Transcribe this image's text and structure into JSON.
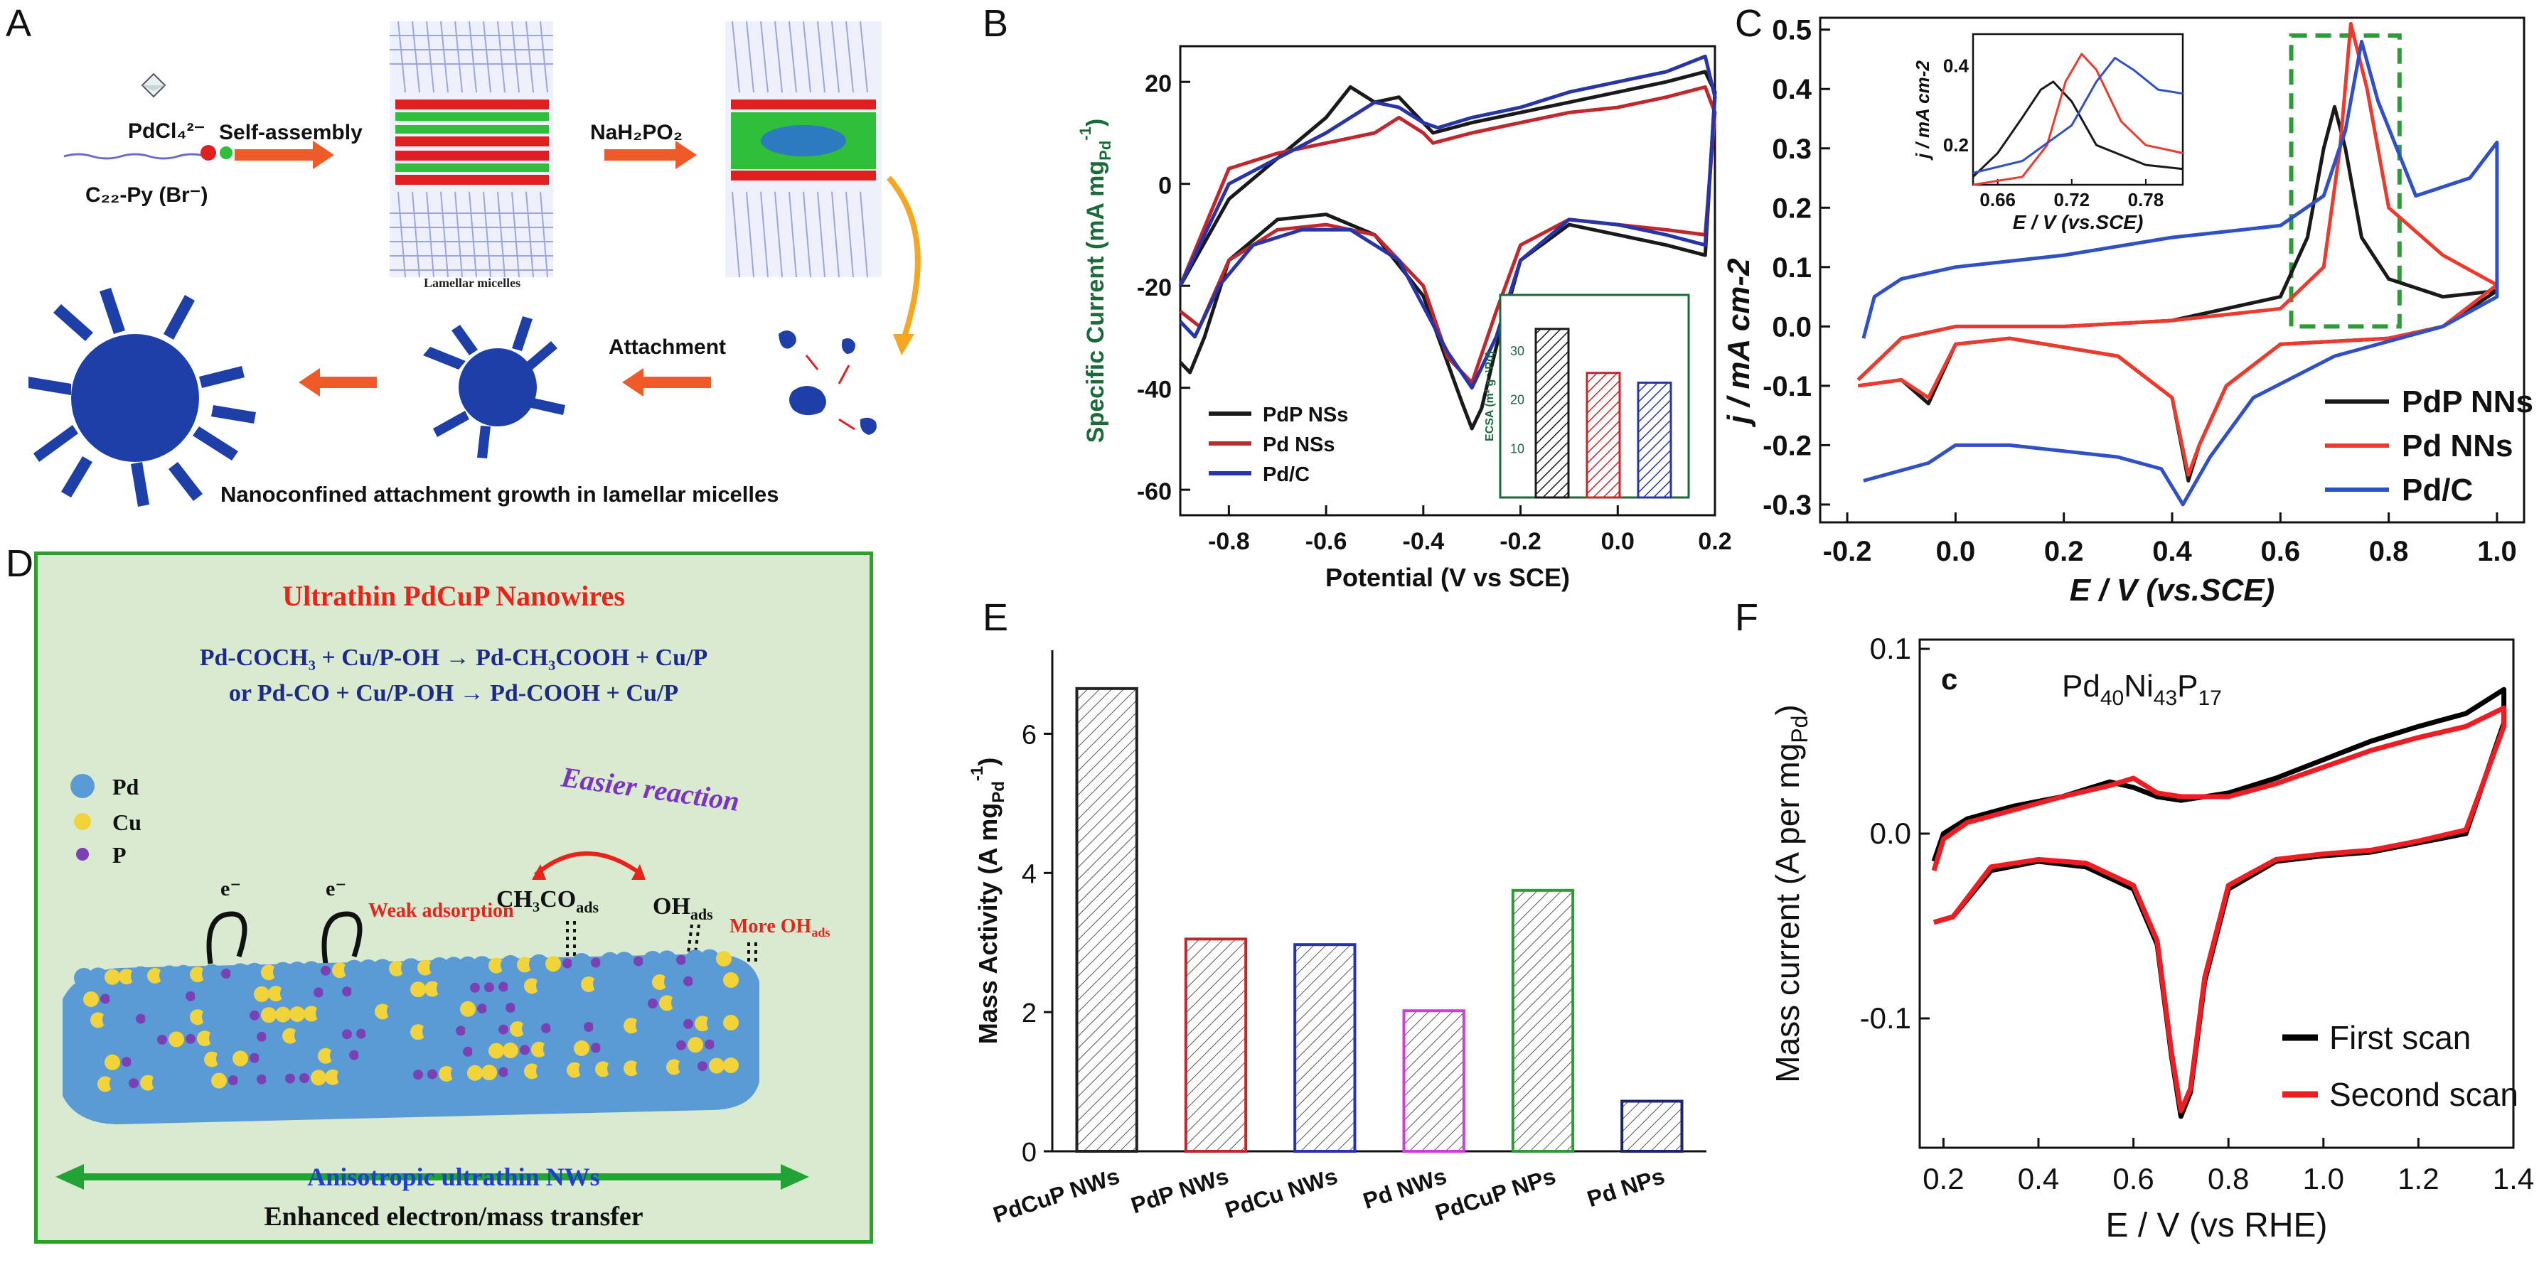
{
  "panels": {
    "A": {
      "label": "A",
      "texts": {
        "precursor": "PdCl₄²⁻",
        "surfactant": "C₂₂-Py (Br⁻)",
        "step1": "Self-assembly",
        "micelles": "Lamellar micelles",
        "step2": "NaH₂PO₂",
        "step3": "Attachment",
        "caption": "Nanoconfined attachment growth in lamellar micelles"
      }
    },
    "B": {
      "label": "B"
    },
    "C": {
      "label": "C"
    },
    "D": {
      "label": "D",
      "title": "Ultrathin PdCuP Nanowires",
      "eq1": "Pd-COCH₃ + Cu/P-OH → Pd-CH₃COOH + Cu/P",
      "eq2": "or Pd-CO + Cu/P-OH → Pd-COOH + Cu/P",
      "legend": [
        "Pd",
        "Cu",
        "P"
      ],
      "easier": "Easier reaction",
      "ch3co": "CH₃CO",
      "ch3co_sub": "ads",
      "oh": "OH",
      "oh_sub": "ads",
      "weak": "Weak adsorption",
      "more": "More OH",
      "more_sub": "ads",
      "electron": "e⁻",
      "aniso": "Anisotropic ultrathin NWs",
      "enhanced": "Enhanced electron/mass transfer"
    },
    "E": {
      "label": "E"
    },
    "F": {
      "label": "F"
    }
  },
  "colors": {
    "pdp": "#1a1a1a",
    "pd_red": "#c0282e",
    "pdc_blue": "#2835a8",
    "c_red": "#ee3a2c",
    "c_blue": "#3050c8",
    "dash_green": "#2e9a3a",
    "pd_ball": "#5b9bd5",
    "cu_ball": "#f2d43a",
    "p_ball": "#7d3fb5",
    "d_bg": "#d9ead1",
    "d_border": "#2ca02c",
    "particle": "#1f3fa8"
  },
  "chart_data": [
    {
      "panel": "B",
      "type": "line",
      "xlabel": "Potential (V vs SCE)",
      "ylabel": "Specific Current (mA mg",
      "ylabel_sub": "Pd",
      "ylabel_sup": "-1",
      "ylabel_close": ")",
      "xlim": [
        -0.9,
        0.2
      ],
      "ylim": [
        -65,
        27
      ],
      "xticks": [
        -0.8,
        -0.6,
        -0.4,
        -0.2,
        0.0,
        0.2
      ],
      "xtick_labels": [
        "-0.8",
        "-0.6",
        "-0.4",
        "-0.2",
        "0.0",
        "0.2"
      ],
      "yticks": [
        20,
        0,
        -20,
        -40,
        -60
      ],
      "ytick_labels": [
        "20",
        "0",
        "-20",
        "-40",
        "-60"
      ],
      "legend_position": "bottom-left",
      "series": [
        {
          "name": "PdP NSs",
          "color": "#1a1a1a",
          "x": [
            -0.9,
            -0.8,
            -0.7,
            -0.6,
            -0.55,
            -0.5,
            -0.45,
            -0.42,
            -0.38,
            -0.3,
            -0.2,
            -0.1,
            0.0,
            0.1,
            0.18,
            0.2,
            0.18,
            0.1,
            0.0,
            -0.1,
            -0.2,
            -0.25,
            -0.28,
            -0.3,
            -0.32,
            -0.4,
            -0.5,
            -0.6,
            -0.7,
            -0.8,
            -0.85,
            -0.88,
            -0.9
          ],
          "y": [
            -20,
            -3,
            5,
            13,
            19,
            16,
            17,
            14,
            10,
            12,
            14,
            16,
            18,
            20,
            22,
            18,
            -14,
            -12,
            -10,
            -8,
            -15,
            -32,
            -44,
            -48,
            -43,
            -22,
            -10,
            -6,
            -7,
            -15,
            -30,
            -37,
            -35
          ]
        },
        {
          "name": "Pd NSs",
          "color": "#c0282e",
          "x": [
            -0.9,
            -0.8,
            -0.7,
            -0.6,
            -0.5,
            -0.45,
            -0.4,
            -0.38,
            -0.3,
            -0.2,
            -0.1,
            0.0,
            0.1,
            0.18,
            0.2,
            0.18,
            0.1,
            0.0,
            -0.1,
            -0.2,
            -0.25,
            -0.3,
            -0.35,
            -0.4,
            -0.5,
            -0.6,
            -0.7,
            -0.8,
            -0.86,
            -0.9
          ],
          "y": [
            -20,
            3,
            6,
            8,
            10,
            13,
            10,
            8,
            10,
            12,
            14,
            15,
            17,
            19,
            14,
            -10,
            -9,
            -8,
            -7,
            -12,
            -25,
            -39,
            -34,
            -20,
            -10,
            -8,
            -9,
            -15,
            -28,
            -25
          ]
        },
        {
          "name": "Pd/C",
          "color": "#2835a8",
          "x": [
            -0.9,
            -0.8,
            -0.7,
            -0.6,
            -0.5,
            -0.45,
            -0.4,
            -0.37,
            -0.3,
            -0.2,
            -0.1,
            0.0,
            0.1,
            0.18,
            0.2,
            0.18,
            0.1,
            0.0,
            -0.1,
            -0.2,
            -0.25,
            -0.3,
            -0.35,
            -0.45,
            -0.55,
            -0.65,
            -0.75,
            -0.82,
            -0.87,
            -0.9
          ],
          "y": [
            -20,
            0,
            5,
            10,
            16,
            15,
            12,
            11,
            13,
            15,
            18,
            20,
            22,
            25,
            17,
            -12,
            -10,
            -8,
            -7,
            -15,
            -30,
            -40,
            -33,
            -15,
            -9,
            -9,
            -12,
            -20,
            -30,
            -27
          ]
        }
      ]
    },
    {
      "panel": "B-inset",
      "type": "bar",
      "ylabel": "ECSA (m² g⁻¹Pd)",
      "categories": [
        "PdP NSs",
        "Pd NSs",
        "Pd/C"
      ],
      "values": [
        34.5,
        25.5,
        23.5
      ],
      "ylim": [
        0,
        40
      ],
      "yticks": [
        10,
        20,
        30
      ],
      "ytick_labels": [
        "10",
        "20",
        "30"
      ]
    },
    {
      "panel": "C",
      "type": "line",
      "xlabel": "E / V (vs.SCE)",
      "ylabel": "j / mA cm-2",
      "xlim": [
        -0.25,
        1.05
      ],
      "ylim": [
        -0.33,
        0.52
      ],
      "xticks": [
        -0.2,
        0.0,
        0.2,
        0.4,
        0.6,
        0.8,
        1.0
      ],
      "xtick_labels": [
        "-0.2",
        "0.0",
        "0.2",
        "0.4",
        "0.6",
        "0.8",
        "1.0"
      ],
      "yticks": [
        0.5,
        0.4,
        0.3,
        0.2,
        0.1,
        0.0,
        -0.1,
        -0.2,
        -0.3
      ],
      "ytick_labels": [
        "0.5",
        "0.4",
        "0.3",
        "0.2",
        "0.1",
        "0.0",
        "-0.1",
        "-0.2",
        "-0.3"
      ],
      "legend_position": "bottom-right",
      "series": [
        {
          "name": "PdP NNs",
          "color": "#1a1a1a",
          "x": [
            -0.18,
            -0.1,
            0.0,
            0.2,
            0.4,
            0.6,
            0.65,
            0.68,
            0.7,
            0.72,
            0.75,
            0.8,
            0.9,
            1.0,
            0.9,
            0.8,
            0.6,
            0.5,
            0.45,
            0.43,
            0.4,
            0.3,
            0.1,
            0.0,
            -0.05,
            -0.1,
            -0.18
          ],
          "y": [
            -0.09,
            -0.02,
            0.0,
            0.0,
            0.01,
            0.05,
            0.15,
            0.3,
            0.37,
            0.3,
            0.15,
            0.08,
            0.05,
            0.06,
            0.0,
            -0.02,
            -0.03,
            -0.1,
            -0.2,
            -0.26,
            -0.12,
            -0.05,
            -0.02,
            -0.03,
            -0.13,
            -0.09,
            -0.1
          ]
        },
        {
          "name": "Pd NNs",
          "color": "#ee3a2c",
          "x": [
            -0.18,
            -0.1,
            0.0,
            0.2,
            0.4,
            0.6,
            0.68,
            0.71,
            0.73,
            0.76,
            0.8,
            0.9,
            1.0,
            0.9,
            0.8,
            0.6,
            0.5,
            0.45,
            0.43,
            0.4,
            0.3,
            0.1,
            0.0,
            -0.05,
            -0.1,
            -0.18
          ],
          "y": [
            -0.09,
            -0.02,
            0.0,
            0.0,
            0.01,
            0.03,
            0.1,
            0.3,
            0.51,
            0.4,
            0.2,
            0.12,
            0.07,
            0.0,
            -0.02,
            -0.03,
            -0.1,
            -0.2,
            -0.25,
            -0.12,
            -0.05,
            -0.02,
            -0.03,
            -0.12,
            -0.09,
            -0.1
          ]
        },
        {
          "name": "Pd/C",
          "color": "#3050c8",
          "x": [
            -0.17,
            -0.15,
            -0.1,
            0.0,
            0.2,
            0.4,
            0.6,
            0.68,
            0.72,
            0.75,
            0.78,
            0.85,
            0.95,
            1.0,
            1.0,
            0.9,
            0.7,
            0.55,
            0.47,
            0.42,
            0.38,
            0.3,
            0.1,
            0.0,
            -0.05,
            -0.17
          ],
          "y": [
            -0.02,
            0.05,
            0.08,
            0.1,
            0.12,
            0.15,
            0.17,
            0.22,
            0.33,
            0.48,
            0.38,
            0.22,
            0.25,
            0.31,
            0.05,
            0.0,
            -0.05,
            -0.12,
            -0.22,
            -0.3,
            -0.24,
            -0.22,
            -0.2,
            -0.2,
            -0.23,
            -0.26
          ]
        }
      ]
    },
    {
      "panel": "C-inset",
      "type": "line",
      "xlabel": "E / V (vs.SCE)",
      "ylabel": "j / mA cm-2",
      "xlim": [
        0.64,
        0.81
      ],
      "ylim": [
        0.1,
        0.48
      ],
      "xticks": [
        0.66,
        0.72,
        0.78
      ],
      "xtick_labels": [
        "0.66",
        "0.72",
        "0.78"
      ],
      "yticks": [
        0.2,
        0.4
      ],
      "ytick_labels": [
        "0.2",
        "0.4"
      ],
      "series": [
        {
          "name": "PdP NNs",
          "color": "#1a1a1a",
          "x": [
            0.64,
            0.66,
            0.68,
            0.695,
            0.705,
            0.72,
            0.74,
            0.78,
            0.81
          ],
          "y": [
            0.12,
            0.18,
            0.27,
            0.34,
            0.36,
            0.31,
            0.2,
            0.15,
            0.14
          ]
        },
        {
          "name": "Pd NNs",
          "color": "#ee3a2c",
          "x": [
            0.64,
            0.68,
            0.7,
            0.715,
            0.728,
            0.74,
            0.76,
            0.78,
            0.81
          ],
          "y": [
            0.1,
            0.12,
            0.2,
            0.36,
            0.43,
            0.39,
            0.26,
            0.2,
            0.18
          ]
        },
        {
          "name": "Pd/C",
          "color": "#3050c8",
          "x": [
            0.64,
            0.68,
            0.72,
            0.74,
            0.755,
            0.77,
            0.79,
            0.81
          ],
          "y": [
            0.13,
            0.16,
            0.25,
            0.36,
            0.42,
            0.39,
            0.34,
            0.33
          ]
        }
      ]
    },
    {
      "panel": "E",
      "type": "bar",
      "ylabel": "Mass Activity (A mg",
      "ylabel_sub": "Pd",
      "ylabel_sup": "-1",
      "ylabel_close": ")",
      "categories": [
        "PdCuP NWs",
        "PdP NWs",
        "PdCu NWs",
        "Pd NWs",
        "PdCuP NPs",
        "Pd NPs"
      ],
      "values": [
        6.65,
        3.05,
        2.97,
        2.02,
        3.75,
        0.72
      ],
      "colors": [
        "#222222",
        "#c0282e",
        "#2835a8",
        "#d13be0",
        "#2e9a3a",
        "#1a2670"
      ],
      "ylim": [
        0,
        7.2
      ],
      "yticks": [
        0,
        2,
        4,
        6
      ],
      "ytick_labels": [
        "0",
        "2",
        "4",
        "6"
      ]
    },
    {
      "panel": "F",
      "type": "line",
      "tag": "c",
      "annotation": "Pd",
      "annotation_parts": [
        "Pd",
        "40",
        "Ni",
        "43",
        "P",
        "17"
      ],
      "xlabel": "E / V (vs RHE)",
      "ylabel": "Mass current (A per mg",
      "ylabel_sub": "Pd",
      "ylabel_close": ")",
      "xlim": [
        0.15,
        1.4
      ],
      "ylim": [
        -0.17,
        0.105
      ],
      "xticks": [
        0.2,
        0.4,
        0.6,
        0.8,
        1.0,
        1.2,
        1.4
      ],
      "xtick_labels": [
        "0.2",
        "0.4",
        "0.6",
        "0.8",
        "1.0",
        "1.2",
        "1.4"
      ],
      "yticks": [
        0.1,
        0.0,
        -0.1
      ],
      "ytick_labels": [
        "0.1",
        "0.0",
        "-0.1"
      ],
      "legend_position": "bottom-right",
      "series": [
        {
          "name": "First scan",
          "color": "#000000",
          "x": [
            0.18,
            0.2,
            0.25,
            0.35,
            0.45,
            0.55,
            0.6,
            0.65,
            0.7,
            0.8,
            0.9,
            1.0,
            1.1,
            1.2,
            1.3,
            1.38,
            1.38,
            1.3,
            1.2,
            1.1,
            1.0,
            0.9,
            0.8,
            0.75,
            0.72,
            0.7,
            0.68,
            0.65,
            0.6,
            0.5,
            0.4,
            0.3,
            0.22,
            0.18
          ],
          "y": [
            -0.015,
            0.0,
            0.008,
            0.015,
            0.02,
            0.028,
            0.025,
            0.02,
            0.018,
            0.022,
            0.03,
            0.04,
            0.05,
            0.058,
            0.065,
            0.078,
            0.06,
            0.0,
            -0.005,
            -0.01,
            -0.012,
            -0.015,
            -0.03,
            -0.08,
            -0.14,
            -0.153,
            -0.12,
            -0.06,
            -0.03,
            -0.018,
            -0.015,
            -0.02,
            -0.045,
            -0.048
          ]
        },
        {
          "name": "Second scan",
          "color": "#ee1d23",
          "x": [
            0.18,
            0.2,
            0.25,
            0.35,
            0.45,
            0.55,
            0.6,
            0.65,
            0.7,
            0.8,
            0.9,
            1.0,
            1.1,
            1.2,
            1.3,
            1.38,
            1.38,
            1.3,
            1.2,
            1.1,
            1.0,
            0.9,
            0.8,
            0.75,
            0.72,
            0.7,
            0.68,
            0.65,
            0.6,
            0.5,
            0.4,
            0.3,
            0.22,
            0.18
          ],
          "y": [
            -0.02,
            -0.003,
            0.006,
            0.013,
            0.02,
            0.026,
            0.03,
            0.022,
            0.02,
            0.02,
            0.027,
            0.036,
            0.045,
            0.052,
            0.058,
            0.068,
            0.058,
            0.002,
            -0.004,
            -0.009,
            -0.011,
            -0.014,
            -0.028,
            -0.078,
            -0.138,
            -0.15,
            -0.118,
            -0.058,
            -0.028,
            -0.016,
            -0.014,
            -0.018,
            -0.045,
            -0.048
          ]
        }
      ]
    }
  ]
}
